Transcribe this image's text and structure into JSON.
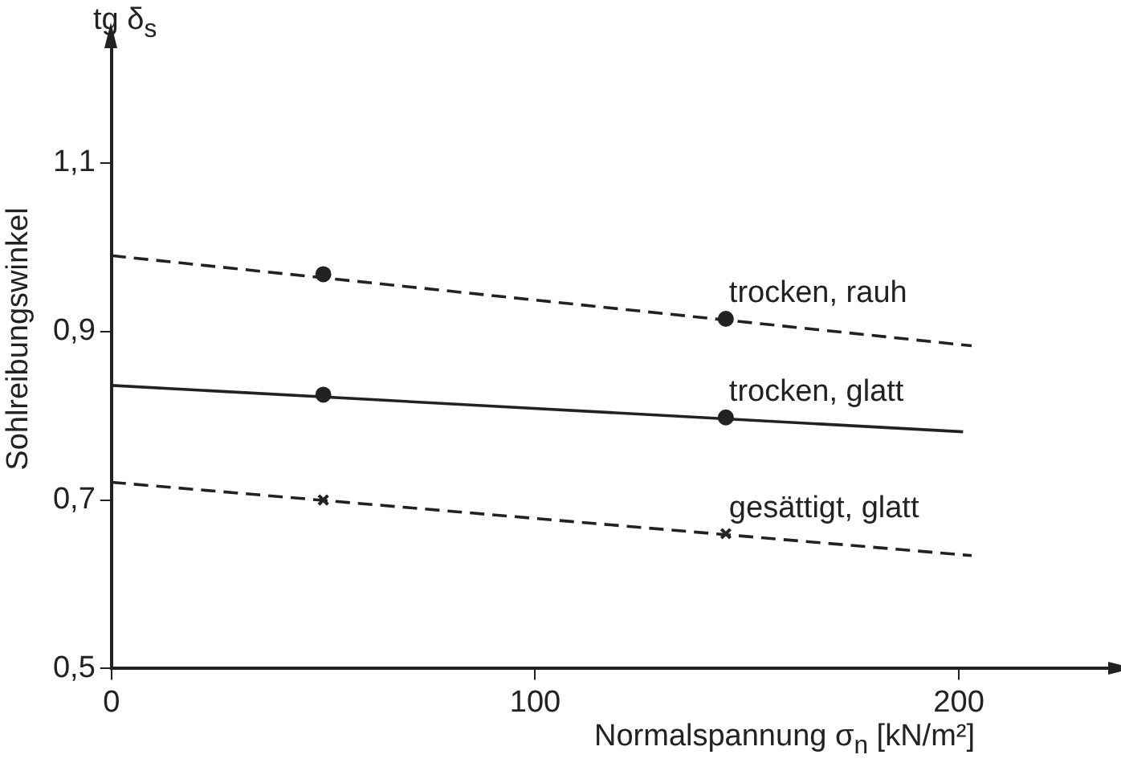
{
  "chart_data": {
    "type": "line",
    "xlabel": "Normalspannung σ$_{n}$ [kN/m²]",
    "ylabel": "Sohlreibungswinkel",
    "annotations": [
      "tg δ$_{s}$"
    ],
    "xlim": [
      0,
      236
    ],
    "xticks": [
      0,
      100,
      200
    ],
    "ylim": [
      0.5,
      1.24
    ],
    "yticks": [
      {
        "value": 0.5,
        "label": "0,5"
      },
      {
        "value": 0.7,
        "label": "0,7"
      },
      {
        "value": 0.9,
        "label": "0,9"
      },
      {
        "value": 1.1,
        "label": "1,1"
      }
    ],
    "grid": false,
    "legend": false,
    "series": [
      {
        "type": "line",
        "color": "#222222",
        "line_style": "dashed",
        "marker": "none",
        "x": [
          0,
          203
        ],
        "values": [
          0.99,
          0.883
        ]
      },
      {
        "type": "scatter",
        "name": "trocken, rauh",
        "color": "#222222",
        "marker": "circle",
        "x": [
          50,
          145
        ],
        "values": [
          0.968,
          0.915
        ]
      },
      {
        "type": "line",
        "color": "#222222",
        "line_style": "solid",
        "marker": "none",
        "x": [
          0,
          201
        ],
        "values": [
          0.836,
          0.781
        ]
      },
      {
        "type": "scatter",
        "name": "trocken, glatt",
        "color": "#222222",
        "marker": "circle",
        "x": [
          50,
          145
        ],
        "values": [
          0.825,
          0.798
        ]
      },
      {
        "type": "line",
        "color": "#222222",
        "line_style": "dashed",
        "marker": "none",
        "x": [
          0,
          203
        ],
        "values": [
          0.721,
          0.634
        ]
      },
      {
        "type": "scatter",
        "name": "gesättigt, glatt",
        "color": "#222222",
        "marker": "cross",
        "x": [
          50,
          145
        ],
        "values": [
          0.7,
          0.66
        ]
      }
    ]
  }
}
